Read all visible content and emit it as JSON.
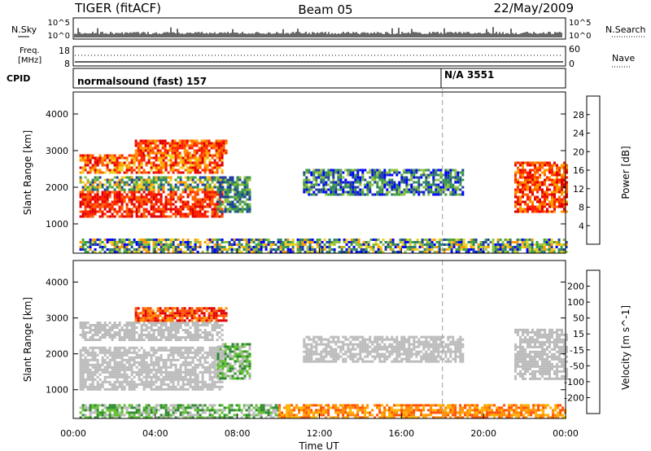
{
  "header": {
    "site": "TIGER (fitACF)",
    "beam": "Beam 05",
    "date": "22/May/2009"
  },
  "strips": {
    "nsky": {
      "label": "N.Sky",
      "ticks": [
        "10^5",
        "10^0"
      ],
      "right_label": "N.Search",
      "right_ticks": [
        "10^5",
        "10^0"
      ]
    },
    "freq": {
      "label_line1": "Freq.",
      "label_line2": "[MHz]",
      "ticks": [
        "18",
        "8"
      ],
      "right_label": "Nave",
      "right_ticks": [
        "60",
        "0"
      ]
    },
    "cpid": {
      "label": "CPID",
      "segments": [
        "normalsound (fast) 157",
        "N/A 3551"
      ]
    }
  },
  "colors": {
    "power": [
      "#0000ff",
      "#1f3fa0",
      "#2e7d6b",
      "#3fa040",
      "#8fc040",
      "#f0d020",
      "#ff9a00",
      "#ff6000",
      "#ff2000",
      "#e00000"
    ],
    "velocity": [
      "#e00000",
      "#ff5000",
      "#ff8c00",
      "#ffb000",
      "#bbbbbb",
      "#bbbbbb",
      "#60c030",
      "#2e8a2e",
      "#1f3fa0",
      "#0000ff"
    ],
    "cpid_change": "#999999"
  },
  "chart_data": [
    {
      "type": "heatmap",
      "panel": "power",
      "ylabel": "Slant Range [km]",
      "yticks": [
        "1000",
        "2000",
        "3000",
        "4000"
      ],
      "ylim": [
        200,
        4600
      ],
      "xlim": [
        "00:00",
        "24:00"
      ],
      "colorbar": {
        "label": "Power [dB]",
        "ticks": [
          "4",
          "8",
          "12",
          "16",
          "20",
          "24",
          "28"
        ],
        "range": [
          0,
          32
        ]
      },
      "regions": [
        {
          "t_start": 0.3,
          "t_end": 7.3,
          "range_start": 1200,
          "range_end": 1900,
          "level": "28+"
        },
        {
          "t_start": 0.3,
          "t_end": 7.3,
          "range_start": 1900,
          "range_end": 2300,
          "level": "8-20"
        },
        {
          "t_start": 0.3,
          "t_end": 7.3,
          "range_start": 2400,
          "range_end": 2900,
          "level": "16-28"
        },
        {
          "t_start": 3.0,
          "t_end": 7.5,
          "range_start": 2900,
          "range_end": 3300,
          "level": "20-28"
        },
        {
          "t_start": 7.0,
          "t_end": 8.6,
          "range_start": 1300,
          "range_end": 2300,
          "level": "8-16"
        },
        {
          "t_start": 11.2,
          "t_end": 19.0,
          "range_start": 1800,
          "range_end": 2500,
          "level": "4-16"
        },
        {
          "t_start": 21.5,
          "t_end": 24.0,
          "range_start": 1300,
          "range_end": 2700,
          "level": "20-28"
        },
        {
          "t_start": 0.3,
          "t_end": 24.0,
          "range_start": 200,
          "range_end": 600,
          "level": "4-20"
        }
      ]
    },
    {
      "type": "heatmap",
      "panel": "velocity",
      "ylabel": "Slant Range [km]",
      "yticks": [
        "1000",
        "2000",
        "3000",
        "4000"
      ],
      "ylim": [
        200,
        4600
      ],
      "xlabel": "Time UT",
      "xticks": [
        "00:00",
        "04:00",
        "08:00",
        "12:00",
        "16:00",
        "20:00",
        "00:00"
      ],
      "xlim": [
        "00:00",
        "24:00"
      ],
      "colorbar": {
        "label": "Velocity [m s^-1]",
        "ticks": [
          "200",
          "100",
          "50",
          "15",
          "-15",
          "-50",
          "-100",
          "-200"
        ],
        "range": [
          -250,
          250
        ]
      },
      "regions": [
        {
          "t_start": 0.3,
          "t_end": 7.3,
          "range_start": 1000,
          "range_end": 2200,
          "level": "-15 to 15"
        },
        {
          "t_start": 0.3,
          "t_end": 7.3,
          "range_start": 2400,
          "range_end": 2900,
          "level": "-15 to 15"
        },
        {
          "t_start": 3.0,
          "t_end": 7.5,
          "range_start": 2900,
          "range_end": 3300,
          "level": "-50 to -200"
        },
        {
          "t_start": 7.0,
          "t_end": 8.6,
          "range_start": 1300,
          "range_end": 2300,
          "level": "15 to 100"
        },
        {
          "t_start": 11.2,
          "t_end": 19.0,
          "range_start": 1800,
          "range_end": 2500,
          "level": "-15 to 15"
        },
        {
          "t_start": 21.5,
          "t_end": 24.0,
          "range_start": 1300,
          "range_end": 2700,
          "level": "-15 to 15"
        },
        {
          "t_start": 0.3,
          "t_end": 10.0,
          "range_start": 200,
          "range_end": 600,
          "level": "15 to 100"
        },
        {
          "t_start": 10.0,
          "t_end": 24.0,
          "range_start": 200,
          "range_end": 600,
          "level": "-50 to -100"
        }
      ]
    }
  ],
  "cpid_change_time": "18:00"
}
